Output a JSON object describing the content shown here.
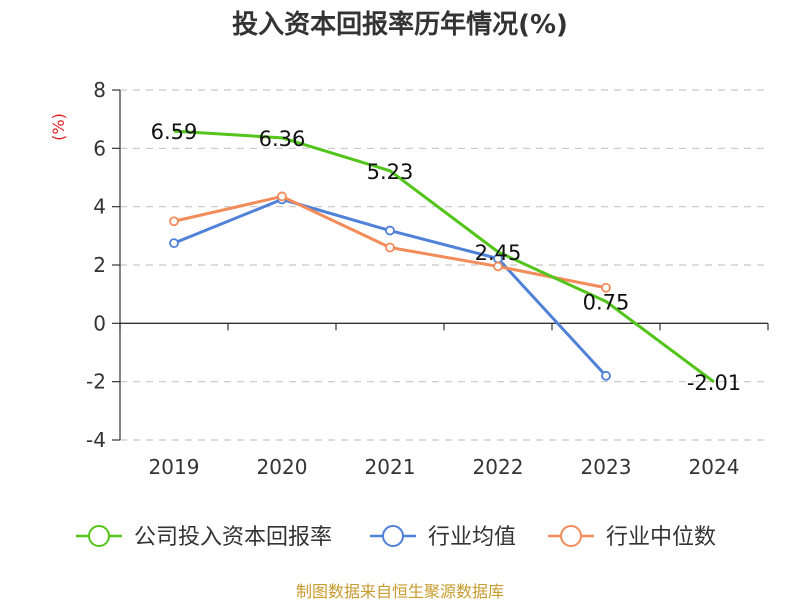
{
  "title": "投入资本回报率历年情况(%)",
  "source": "制图数据来自恒生聚源数据库",
  "chart_data": {
    "type": "line",
    "title": "投入资本回报率历年情况(%)",
    "ylabel": "(%)",
    "xlabel": "",
    "categories": [
      "2019",
      "2020",
      "2021",
      "2022",
      "2023",
      "2024"
    ],
    "ylim": [
      -4,
      8
    ],
    "yticks": [
      8,
      6,
      4,
      2,
      0,
      -2,
      -4
    ],
    "grid": true,
    "legend_position": "bottom",
    "series": [
      {
        "name": "公司投入资本回报率",
        "color": "#52c41a",
        "values": [
          6.59,
          6.36,
          5.23,
          2.45,
          0.75,
          -2.01
        ],
        "labels": [
          "6.59",
          "6.36",
          "5.23",
          "2.45",
          "0.75",
          "-2.01"
        ]
      },
      {
        "name": "行业均值",
        "color": "#4f81d9",
        "values": [
          2.75,
          4.25,
          3.18,
          2.22,
          -1.8,
          null
        ]
      },
      {
        "name": "行业中位数",
        "color": "#f28c5a",
        "values": [
          3.5,
          4.35,
          2.6,
          1.95,
          1.22,
          null
        ]
      }
    ]
  }
}
